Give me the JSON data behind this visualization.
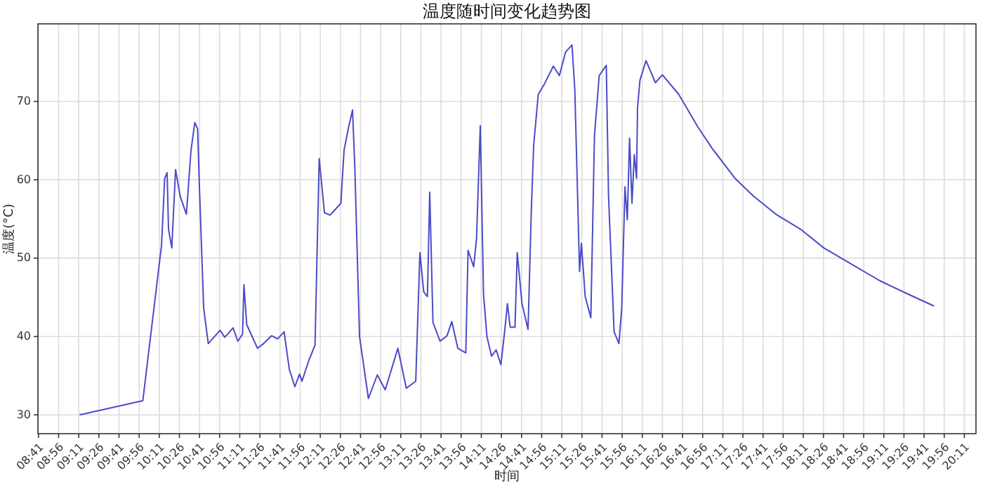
{
  "chart_data": {
    "type": "line",
    "title": "温度随时间变化趋势图",
    "xlabel": "时间",
    "ylabel": "温度(°C)",
    "xlim": [
      8.676,
      20.328
    ],
    "ylim": [
      27.6,
      79.9
    ],
    "yticks": [
      30,
      40,
      50,
      60,
      70
    ],
    "xticks": [
      {
        "value": 8.6833,
        "label": "08:41"
      },
      {
        "value": 8.9333,
        "label": "08:56"
      },
      {
        "value": 9.1833,
        "label": "09:11"
      },
      {
        "value": 9.4333,
        "label": "09:26"
      },
      {
        "value": 9.6833,
        "label": "09:41"
      },
      {
        "value": 9.9333,
        "label": "09:56"
      },
      {
        "value": 10.1833,
        "label": "10:11"
      },
      {
        "value": 10.4333,
        "label": "10:26"
      },
      {
        "value": 10.6833,
        "label": "10:41"
      },
      {
        "value": 10.9333,
        "label": "10:56"
      },
      {
        "value": 11.1833,
        "label": "11:11"
      },
      {
        "value": 11.4333,
        "label": "11:26"
      },
      {
        "value": 11.6833,
        "label": "11:41"
      },
      {
        "value": 11.9333,
        "label": "11:56"
      },
      {
        "value": 12.1833,
        "label": "12:11"
      },
      {
        "value": 12.4333,
        "label": "12:26"
      },
      {
        "value": 12.6833,
        "label": "12:41"
      },
      {
        "value": 12.9333,
        "label": "12:56"
      },
      {
        "value": 13.1833,
        "label": "13:11"
      },
      {
        "value": 13.4333,
        "label": "13:26"
      },
      {
        "value": 13.6833,
        "label": "13:41"
      },
      {
        "value": 13.9333,
        "label": "13:56"
      },
      {
        "value": 14.1833,
        "label": "14:11"
      },
      {
        "value": 14.4333,
        "label": "14:26"
      },
      {
        "value": 14.6833,
        "label": "14:41"
      },
      {
        "value": 14.9333,
        "label": "14:56"
      },
      {
        "value": 15.1833,
        "label": "15:11"
      },
      {
        "value": 15.4333,
        "label": "15:26"
      },
      {
        "value": 15.6833,
        "label": "15:41"
      },
      {
        "value": 15.9333,
        "label": "15:56"
      },
      {
        "value": 16.1833,
        "label": "16:11"
      },
      {
        "value": 16.4333,
        "label": "16:26"
      },
      {
        "value": 16.6833,
        "label": "16:41"
      },
      {
        "value": 16.9333,
        "label": "16:56"
      },
      {
        "value": 17.1833,
        "label": "17:11"
      },
      {
        "value": 17.4333,
        "label": "17:26"
      },
      {
        "value": 17.6833,
        "label": "17:41"
      },
      {
        "value": 17.9333,
        "label": "17:56"
      },
      {
        "value": 18.1833,
        "label": "18:11"
      },
      {
        "value": 18.4333,
        "label": "18:26"
      },
      {
        "value": 18.6833,
        "label": "18:41"
      },
      {
        "value": 18.9333,
        "label": "18:56"
      },
      {
        "value": 19.1833,
        "label": "19:11"
      },
      {
        "value": 19.4333,
        "label": "19:26"
      },
      {
        "value": 19.6833,
        "label": "19:41"
      },
      {
        "value": 19.9333,
        "label": "19:56"
      },
      {
        "value": 20.1833,
        "label": "20:11"
      }
    ],
    "grid": true,
    "series": [
      {
        "color": "#4b4bc8",
        "x": [
          9.194,
          9.979,
          10.211,
          10.251,
          10.281,
          10.298,
          10.339,
          10.386,
          10.443,
          10.52,
          10.578,
          10.625,
          10.66,
          10.682,
          10.735,
          10.792,
          10.939,
          10.996,
          11.101,
          11.159,
          11.218,
          11.235,
          11.27,
          11.403,
          11.48,
          11.577,
          11.654,
          11.734,
          11.799,
          11.868,
          11.926,
          11.956,
          12.043,
          12.118,
          12.17,
          12.235,
          12.305,
          12.439,
          12.479,
          12.537,
          12.584,
          12.613,
          12.671,
          12.781,
          12.892,
          12.99,
          13.147,
          13.252,
          13.369,
          13.421,
          13.468,
          13.514,
          13.543,
          13.583,
          13.671,
          13.758,
          13.817,
          13.892,
          13.991,
          14.019,
          14.089,
          14.124,
          14.171,
          14.211,
          14.253,
          14.311,
          14.368,
          14.427,
          14.473,
          14.508,
          14.542,
          14.602,
          14.63,
          14.689,
          14.764,
          14.804,
          14.834,
          14.891,
          14.961,
          15.078,
          15.153,
          15.23,
          15.31,
          15.345,
          15.404,
          15.427,
          15.474,
          15.544,
          15.589,
          15.648,
          15.736,
          15.764,
          15.833,
          15.893,
          15.928,
          15.968,
          15.997,
          16.025,
          16.055,
          16.084,
          16.112,
          16.124,
          16.154,
          16.229,
          16.346,
          16.433,
          16.473,
          16.636,
          16.87,
          17.044,
          17.333,
          17.567,
          17.857,
          18.148,
          18.439,
          18.788,
          19.137,
          19.486,
          19.805
        ],
        "values": [
          30.0,
          31.8,
          51.6,
          60.2,
          60.9,
          53.7,
          51.3,
          61.3,
          57.9,
          55.6,
          63.8,
          67.3,
          66.5,
          59.1,
          43.6,
          39.1,
          40.8,
          39.9,
          41.1,
          39.4,
          40.3,
          46.6,
          41.5,
          38.5,
          39.1,
          40.1,
          39.7,
          40.6,
          35.8,
          33.6,
          35.2,
          34.3,
          37.0,
          38.9,
          62.7,
          55.8,
          55.5,
          57.0,
          63.8,
          66.8,
          68.9,
          61.4,
          40.0,
          32.1,
          35.1,
          33.2,
          38.5,
          33.4,
          34.3,
          50.7,
          45.7,
          45.1,
          58.4,
          41.8,
          39.4,
          40.1,
          41.9,
          38.5,
          37.9,
          51.0,
          48.9,
          52.5,
          66.9,
          45.4,
          40.0,
          37.5,
          38.3,
          36.4,
          40.6,
          44.2,
          41.2,
          41.2,
          50.7,
          44.2,
          40.9,
          55.8,
          64.4,
          70.9,
          72.1,
          74.5,
          73.3,
          76.3,
          77.2,
          71.5,
          48.3,
          51.9,
          45.1,
          42.4,
          65.6,
          73.3,
          74.6,
          57.9,
          40.6,
          39.1,
          43.6,
          59.1,
          54.9,
          65.3,
          57.0,
          63.2,
          60.2,
          69.2,
          72.7,
          75.2,
          72.4,
          73.4,
          72.9,
          70.9,
          66.8,
          64.1,
          60.2,
          57.9,
          55.5,
          53.7,
          51.3,
          49.2,
          47.1,
          45.4,
          43.9
        ]
      }
    ]
  }
}
